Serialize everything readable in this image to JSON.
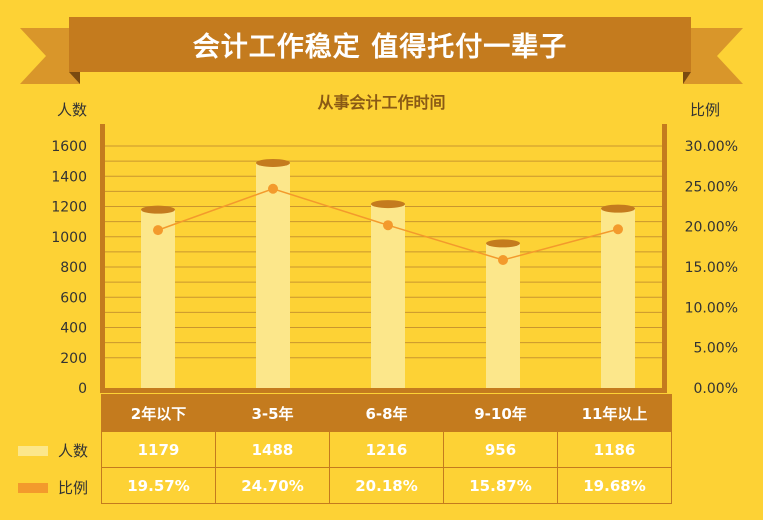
{
  "banner": {
    "title": "会计工作稳定 值得托付一辈子"
  },
  "chart_data": {
    "type": "bar",
    "title": "从事会计工作时间",
    "ylabel": "人数",
    "y2label": "比例",
    "categories": [
      "2年以下",
      "3-5年",
      "6-8年",
      "9-10年",
      "11年以上"
    ],
    "ylim": [
      0,
      1600
    ],
    "y2lim": [
      0,
      30
    ],
    "yticks": [
      "0",
      "200",
      "400",
      "600",
      "800",
      "1000",
      "1200",
      "1400",
      "1600"
    ],
    "y2ticks": [
      "0.00%",
      "5.00%",
      "10.00%",
      "15.00%",
      "20.00%",
      "25.00%",
      "30.00%"
    ],
    "series": [
      {
        "name": "人数",
        "type": "bar",
        "values": [
          1179,
          1488,
          1216,
          956,
          1186
        ],
        "labels": [
          "1179",
          "1488",
          "1216",
          "956",
          "1186"
        ],
        "color": "#FCE78B"
      },
      {
        "name": "比例",
        "type": "line",
        "axis": "right",
        "values": [
          19.57,
          24.7,
          20.18,
          15.87,
          19.68
        ],
        "labels": [
          "19.57%",
          "24.70%",
          "20.18%",
          "15.87%",
          "19.68%"
        ],
        "color": "#F39A2C"
      }
    ]
  },
  "colors": {
    "background": "#FDD235",
    "accent": "#C47B1E",
    "bar": "#FCE78B",
    "line": "#F39A2C"
  }
}
